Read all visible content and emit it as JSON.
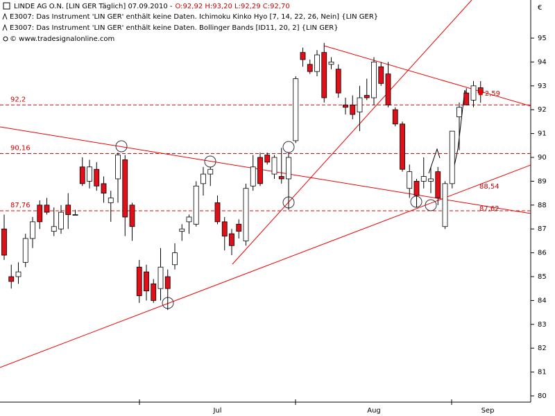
{
  "chart_data": {
    "type": "candlestick",
    "header": {
      "title": "LINDE AG O.N. [LIN GER  Täglich] 07.09.2010 -",
      "quote": "O:92,92 H:93,20 L:92,29 C:92,70",
      "messages": [
        "E3007: Das Instrument 'LIN GER' enthält keine Daten. Ichimoku Kinko Hyo [7, 14, 22, 26, Nein] {LIN GER}",
        "E3007: Das Instrument 'LIN GER' enthält keine Daten. Bollinger Bands [ID11, 20, 2] {LIN GER}"
      ],
      "copyright": "© www.tradesignalonline.com",
      "currency": "€"
    },
    "categories": [
      null,
      null,
      null,
      null,
      null,
      null,
      null,
      null,
      null,
      null,
      null,
      null,
      null,
      null,
      null,
      null,
      null,
      null,
      null,
      null,
      null,
      null,
      null,
      null,
      null,
      null,
      null,
      null,
      null,
      null,
      "Jul",
      null,
      null,
      null,
      null,
      null,
      null,
      null,
      null,
      null,
      null,
      null,
      null,
      null,
      null,
      null,
      null,
      null,
      null,
      null,
      null,
      null,
      "Aug",
      null,
      null,
      null,
      null,
      null,
      null,
      null,
      null,
      null,
      null,
      null,
      null,
      null,
      null,
      null,
      "Sep"
    ],
    "open": [
      87.0,
      85.0,
      85.0,
      85.6,
      86.6,
      88.0,
      88.0,
      86.9,
      87.0,
      88.0,
      87.6,
      89.6,
      89.0,
      89.5,
      88.9,
      88.1,
      89.1,
      89.9,
      88.0,
      85.4,
      85.2,
      84.7,
      84.5,
      85.0,
      85.5,
      86.9,
      87.3,
      87.2,
      88.9,
      89.3,
      88.1,
      87.3,
      86.8,
      87.2,
      86.5,
      88.8,
      90.0,
      90.1,
      89.3,
      89.2,
      89.1,
      90.7,
      94.4,
      93.9,
      93.6,
      94.4,
      93.9,
      93.7,
      92.2,
      92.2,
      91.9,
      92.6,
      92.5,
      93.8,
      93.5,
      92.0,
      91.4,
      88.7,
      89.0,
      89.0,
      89.0,
      89.4,
      87.1,
      88.9,
      91.7,
      92.7,
      92.4,
      92.92,
      null
    ],
    "high": [
      87.6,
      85.5,
      85.6,
      86.8,
      87.5,
      88.2,
      88.3,
      87.9,
      88.0,
      88.5,
      87.8,
      90.0,
      89.9,
      89.8,
      89.2,
      88.6,
      90.2,
      90.1,
      88.1,
      85.7,
      85.5,
      84.9,
      86.2,
      85.3,
      86.4,
      87.2,
      87.6,
      89.0,
      89.6,
      89.6,
      88.4,
      87.5,
      87.0,
      87.4,
      88.9,
      90.1,
      90.2,
      90.2,
      90.1,
      90.4,
      90.2,
      93.4,
      94.6,
      94.1,
      94.5,
      94.8,
      94.2,
      93.9,
      92.5,
      92.6,
      93.0,
      93.3,
      94.2,
      94.0,
      94.0,
      92.1,
      91.5,
      89.7,
      89.1,
      90.0,
      89.6,
      89.6,
      89.0,
      91.1,
      92.3,
      92.9,
      93.2,
      93.2,
      null
    ],
    "low": [
      85.7,
      84.5,
      84.7,
      85.4,
      86.2,
      87.0,
      87.6,
      86.7,
      86.8,
      87.0,
      87.6,
      88.8,
      88.7,
      88.6,
      88.1,
      87.3,
      88.1,
      86.7,
      86.5,
      83.9,
      84.0,
      83.9,
      84.0,
      83.6,
      85.3,
      86.5,
      86.8,
      87.1,
      88.4,
      88.8,
      87.2,
      86.1,
      85.9,
      86.6,
      86.3,
      88.6,
      88.8,
      89.7,
      89.1,
      88.9,
      87.8,
      90.6,
      93.8,
      93.5,
      93.4,
      92.3,
      93.7,
      92.5,
      91.8,
      91.6,
      91.1,
      92.4,
      92.2,
      93.0,
      92.1,
      91.3,
      89.4,
      88.3,
      87.9,
      88.7,
      88.5,
      88.0,
      87.0,
      88.7,
      90.3,
      92.2,
      92.1,
      92.29,
      null
    ],
    "close": [
      85.9,
      84.8,
      85.2,
      86.6,
      87.3,
      87.3,
      87.7,
      87.1,
      87.7,
      87.6,
      87.6,
      88.9,
      89.6,
      88.8,
      88.5,
      88.3,
      90.1,
      87.5,
      87.1,
      84.2,
      84.4,
      84.0,
      85.4,
      84.5,
      86.0,
      87.0,
      87.5,
      88.8,
      89.3,
      89.5,
      87.3,
      86.7,
      86.3,
      86.9,
      88.7,
      89.6,
      88.9,
      89.8,
      90.0,
      89.1,
      90.0,
      93.3,
      94.1,
      93.6,
      94.3,
      92.5,
      94.0,
      92.7,
      92.1,
      91.8,
      92.5,
      92.5,
      94.0,
      93.1,
      92.2,
      91.4,
      89.5,
      89.4,
      88.4,
      89.2,
      89.1,
      88.3,
      88.9,
      91.1,
      92.1,
      92.2,
      93.0,
      92.7,
      null
    ],
    "up_color": "#ffffff",
    "down_color": "#e0101a",
    "ylim": [
      79.7,
      95.5
    ],
    "yticks": [
      80,
      81,
      82,
      83,
      84,
      85,
      86,
      87,
      88,
      89,
      90,
      91,
      92,
      93,
      94,
      95
    ],
    "levels": [
      {
        "value": 92.2,
        "label": "92,2"
      },
      {
        "value": 90.16,
        "label": "90,16"
      },
      {
        "value": 87.76,
        "label": "87,76"
      }
    ],
    "annotations": [
      {
        "value": 88.54,
        "label": "88,54"
      },
      {
        "value": 87.62,
        "label": "87,62"
      }
    ],
    "last_label": "2,59"
  }
}
